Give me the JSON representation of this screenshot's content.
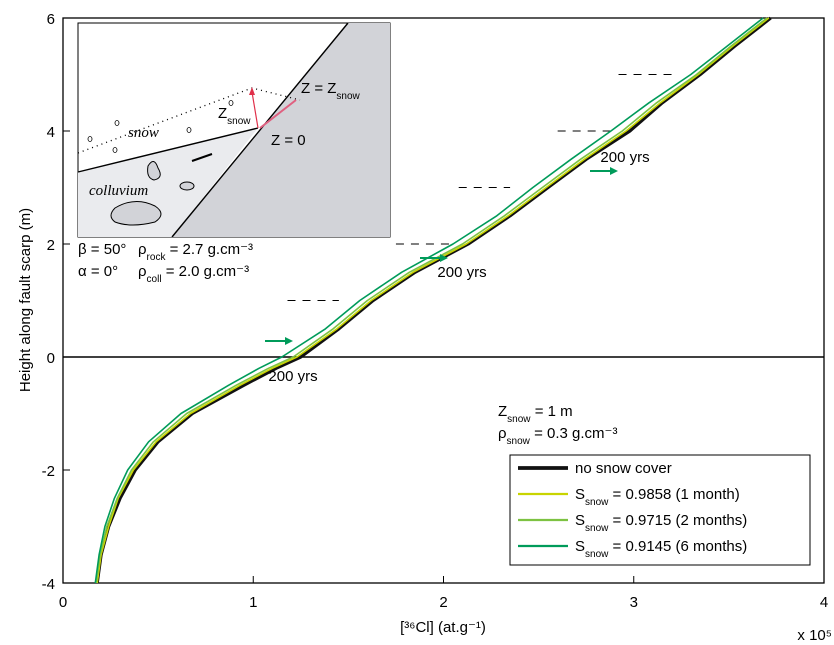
{
  "chart_data": {
    "type": "line",
    "xlabel": "[³⁶Cl] (at.g⁻¹)",
    "ylabel": "Height along fault scarp (m)",
    "x_multiplier": "x 10⁵",
    "xlim": [
      0,
      4
    ],
    "xticks": [
      0,
      1,
      2,
      3,
      4
    ],
    "ylim": [
      -4,
      6
    ],
    "yticks": [
      -4,
      -2,
      0,
      2,
      4,
      6
    ],
    "y": [
      -4,
      -3.5,
      -3,
      -2.5,
      -2,
      -1.5,
      -1,
      -0.5,
      -0.2,
      0,
      0.5,
      1,
      1.5,
      2,
      2.5,
      3,
      3.5,
      4,
      4.5,
      5,
      5.5,
      6
    ],
    "series": [
      {
        "name": [
          "no snow cover"
        ],
        "color": "#111111",
        "width": 3.2,
        "values": [
          0.18,
          0.2,
          0.24,
          0.3,
          0.38,
          0.5,
          0.68,
          0.95,
          1.12,
          1.25,
          1.45,
          1.63,
          1.85,
          2.13,
          2.35,
          2.55,
          2.75,
          2.98,
          3.15,
          3.35,
          3.53,
          3.72
        ]
      },
      {
        "name": [
          "S",
          "snow",
          " = 0.9858 (1 month)"
        ],
        "color": "#c8d400",
        "width": 1.6,
        "values": [
          0.18,
          0.2,
          0.24,
          0.29,
          0.37,
          0.49,
          0.67,
          0.93,
          1.1,
          1.23,
          1.44,
          1.62,
          1.84,
          2.12,
          2.34,
          2.54,
          2.74,
          2.96,
          3.14,
          3.34,
          3.52,
          3.71
        ]
      },
      {
        "name": [
          "S",
          "snow",
          " = 0.9715 (2 months)"
        ],
        "color": "#7dc242",
        "width": 1.6,
        "values": [
          0.175,
          0.195,
          0.23,
          0.285,
          0.36,
          0.475,
          0.65,
          0.91,
          1.08,
          1.21,
          1.42,
          1.6,
          1.82,
          2.1,
          2.32,
          2.52,
          2.72,
          2.94,
          3.12,
          3.33,
          3.51,
          3.7
        ]
      },
      {
        "name": [
          "S",
          "snow",
          " = 0.9145 (6 months)"
        ],
        "color": "#009b5a",
        "width": 1.6,
        "values": [
          0.17,
          0.19,
          0.22,
          0.27,
          0.34,
          0.45,
          0.62,
          0.87,
          1.03,
          1.15,
          1.38,
          1.56,
          1.78,
          2.05,
          2.28,
          2.47,
          2.67,
          2.88,
          3.08,
          3.3,
          3.49,
          3.68
        ]
      }
    ],
    "step_lines": [
      {
        "y": 0,
        "x": [
          0.88,
          1.12
        ]
      },
      {
        "y": 1,
        "x": [
          1.18,
          1.45
        ]
      },
      {
        "y": 2,
        "x": [
          1.75,
          2.05
        ]
      },
      {
        "y": 3,
        "x": [
          2.08,
          2.35
        ]
      },
      {
        "y": 4,
        "x": [
          2.6,
          2.9
        ]
      },
      {
        "y": 5,
        "x": [
          2.92,
          3.2
        ]
      }
    ],
    "arrow_labels": [
      "200 yrs",
      "200 yrs",
      "200 yrs"
    ],
    "snow_params": [
      [
        "Z",
        "snow",
        " = 1 m"
      ],
      [
        "ρ",
        "snow",
        " = 0.3 g.cm⁻³"
      ]
    ],
    "legend_position": "lower right",
    "inset": {
      "labels": {
        "snow": "snow",
        "colluvium": "colluvium",
        "z_snow": [
          "Z",
          "snow"
        ],
        "z_eq_zsnow": [
          "Z = Z",
          "snow"
        ],
        "z_eq_0": [
          "Z = 0"
        ]
      },
      "params": [
        [
          "β = 50°"
        ],
        [
          "α = 0°"
        ],
        [
          "ρ",
          "rock",
          " = 2.7 g.cm⁻³"
        ],
        [
          "ρ",
          "coll",
          " = 2.0 g.cm⁻³"
        ]
      ]
    }
  }
}
